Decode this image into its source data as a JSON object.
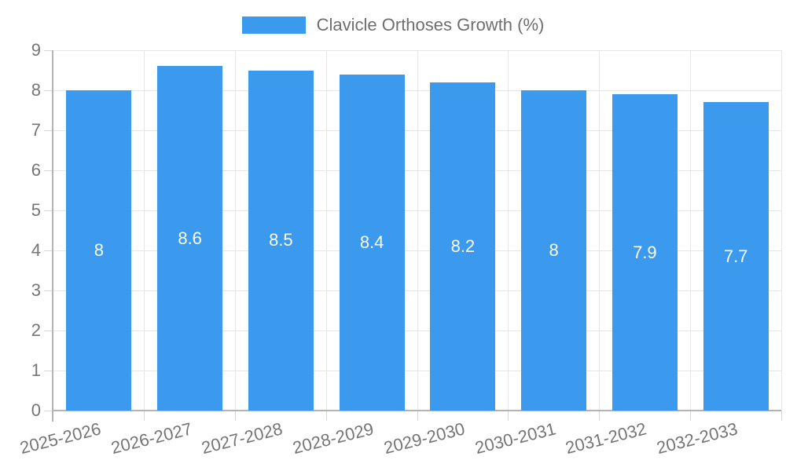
{
  "legend": {
    "label": "Clavicle Orthoses Growth (%)"
  },
  "chart_data": {
    "type": "bar",
    "title": "Clavicle Orthoses Growth (%)",
    "categories": [
      "2025-2026",
      "2026-2027",
      "2027-2028",
      "2028-2029",
      "2029-2030",
      "2030-2031",
      "2031-2032",
      "2032-2033"
    ],
    "values": [
      8,
      8.6,
      8.5,
      8.4,
      8.2,
      8,
      7.9,
      7.7
    ],
    "value_labels": [
      "8",
      "8.6",
      "8.5",
      "8.4",
      "8.2",
      "8",
      "7.9",
      "7.7"
    ],
    "xlabel": "",
    "ylabel": "",
    "y_ticks": [
      0,
      1,
      2,
      3,
      4,
      5,
      6,
      7,
      8,
      9
    ],
    "ylim": [
      0,
      9
    ],
    "grid": true,
    "legend_position": "top",
    "colors": {
      "bar": "#3B99EE",
      "bar_label": "#FFFFFF",
      "tick_text": "#757575",
      "legend_text": "#6E6E6E",
      "grid": "#E6E6E6",
      "tick_mark": "#D6D6D6",
      "axis": "#B3B3B3",
      "background": "#FFFFFF"
    }
  }
}
